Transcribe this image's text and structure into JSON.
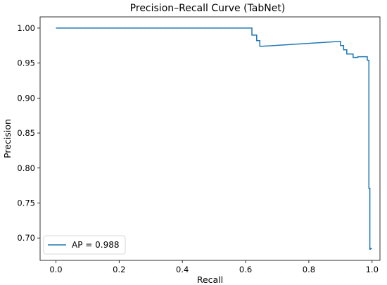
{
  "chart_data": {
    "type": "line",
    "title": "Precision–Recall Curve (TabNet)",
    "xlabel": "Recall",
    "ylabel": "Precision",
    "xlim": [
      -0.05,
      1.025
    ],
    "ylim": [
      0.668,
      1.016
    ],
    "xticks": [
      0.0,
      0.2,
      0.4,
      0.6,
      0.8,
      1.0
    ],
    "xtick_labels": [
      "0.0",
      "0.2",
      "0.4",
      "0.6",
      "0.8",
      "1.0"
    ],
    "yticks": [
      0.7,
      0.75,
      0.8,
      0.85,
      0.9,
      0.95,
      1.0
    ],
    "ytick_labels": [
      "0.70",
      "0.75",
      "0.80",
      "0.85",
      "0.90",
      "0.95",
      "1.00"
    ],
    "grid": false,
    "legend_position": "lower-left",
    "series": [
      {
        "name": "AP = 0.988",
        "color": "#1f77b4",
        "step": "post",
        "x": [
          0.0,
          0.62,
          0.62,
          0.635,
          0.635,
          0.645,
          0.645,
          0.652,
          0.652,
          0.9,
          0.9,
          0.91,
          0.91,
          0.92,
          0.92,
          0.94,
          0.94,
          0.955,
          0.955,
          0.985,
          0.985,
          0.99,
          0.99,
          0.993,
          0.993,
          0.995,
          0.995,
          1.0
        ],
        "y": [
          1.0,
          1.0,
          0.99,
          0.99,
          0.982,
          0.982,
          0.974,
          0.974,
          0.974,
          0.981,
          0.975,
          0.975,
          0.969,
          0.969,
          0.963,
          0.963,
          0.958,
          0.958,
          0.959,
          0.959,
          0.954,
          0.954,
          0.771,
          0.771,
          0.684,
          0.684,
          0.685,
          0.685
        ]
      }
    ]
  }
}
